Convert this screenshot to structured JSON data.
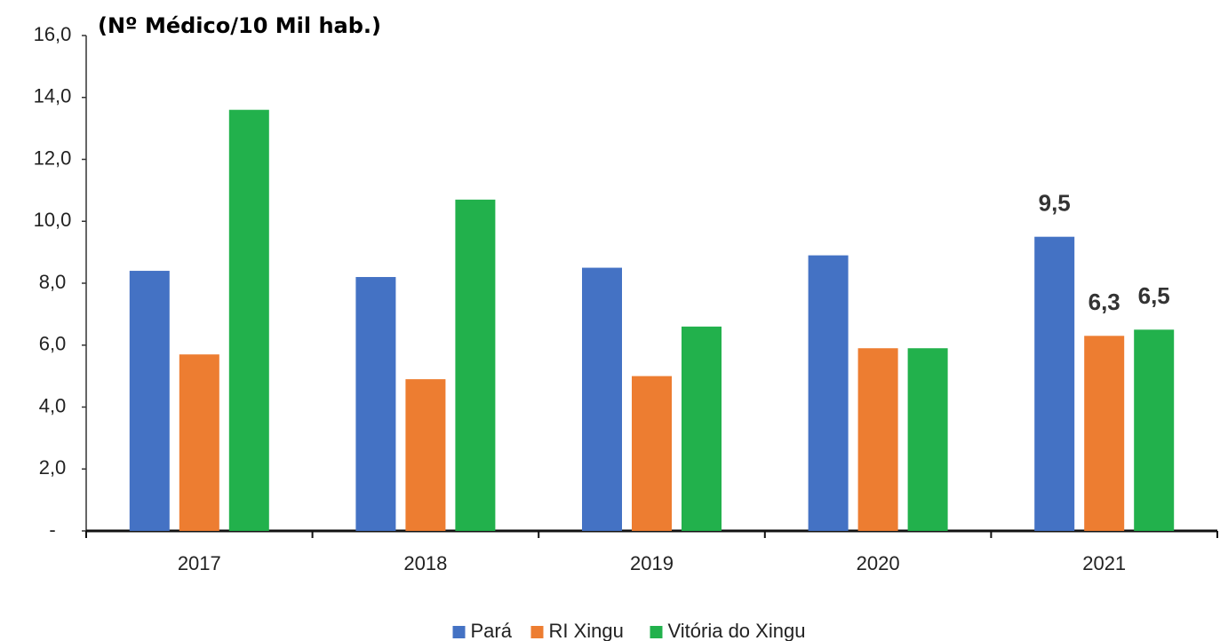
{
  "chart_data": {
    "type": "bar",
    "title": "(Nº Médico/10 Mil hab.)",
    "categories": [
      "2017",
      "2018",
      "2019",
      "2020",
      "2021"
    ],
    "series": [
      {
        "name": "Pará",
        "color": "#4472c4",
        "values": [
          8.4,
          8.2,
          8.5,
          8.9,
          9.5
        ],
        "value_labels": [
          null,
          null,
          null,
          null,
          "9,5"
        ]
      },
      {
        "name": "RI Xingu",
        "color": "#ed7d31",
        "values": [
          5.7,
          4.9,
          5.0,
          5.9,
          6.3
        ],
        "value_labels": [
          null,
          null,
          null,
          null,
          "6,3"
        ]
      },
      {
        "name": "Vitória do Xingu",
        "color": "#22b14c",
        "values": [
          13.6,
          10.7,
          6.6,
          5.9,
          6.5
        ],
        "value_labels": [
          null,
          null,
          null,
          null,
          "6,5"
        ]
      }
    ],
    "ylim": [
      0,
      16
    ],
    "yticks": [
      {
        "value": 0,
        "label": "-"
      },
      {
        "value": 2,
        "label": "2,0"
      },
      {
        "value": 4,
        "label": "4,0"
      },
      {
        "value": 6,
        "label": "6,0"
      },
      {
        "value": 8,
        "label": "8,0"
      },
      {
        "value": 10,
        "label": "10,0"
      },
      {
        "value": 12,
        "label": "12,0"
      },
      {
        "value": 14,
        "label": "14,0"
      },
      {
        "value": 16,
        "label": "16,0"
      }
    ],
    "legend": "bottom"
  }
}
